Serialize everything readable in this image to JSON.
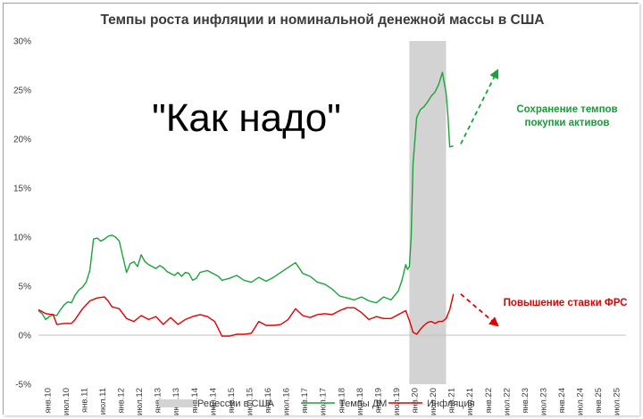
{
  "chart_data": {
    "type": "line",
    "title": "Темпы роста инфляции и номинальной денежной массы в США",
    "overlay_text": "\"Как надо\"",
    "ylim": [
      -5,
      30
    ],
    "yticks": [
      "-5%",
      "0%",
      "5%",
      "10%",
      "15%",
      "20%",
      "25%",
      "30%"
    ],
    "ytick_values": [
      -5,
      0,
      5,
      10,
      15,
      20,
      25,
      30
    ],
    "xlim": [
      2010.0,
      2026.0
    ],
    "xticks": [
      "янв.10",
      "июл.10",
      "янв.11",
      "июл.11",
      "янв.12",
      "июл.12",
      "янв.13",
      "июл.13",
      "янв.14",
      "июл.14",
      "янв.15",
      "июл.15",
      "янв.16",
      "июл.16",
      "янв.17",
      "июл.17",
      "янв.18",
      "июл.18",
      "янв.19",
      "июл.19",
      "янв.20",
      "июл.20",
      "янв.21",
      "июл.21",
      "янв.22",
      "июл.22",
      "янв.23",
      "июл.23",
      "янв.24",
      "июл.24",
      "янв.25",
      "июл.25"
    ],
    "recession": {
      "name": "Рецессии в США",
      "start": 2020.1,
      "end": 2021.1,
      "color": "#d3d3d3"
    },
    "series": [
      {
        "name": "Темпы ДМ",
        "color": "#1aa33a",
        "x": [
          2010.0,
          2010.1,
          2010.2,
          2010.3,
          2010.4,
          2010.5,
          2010.6,
          2010.7,
          2010.8,
          2010.9,
          2011.0,
          2011.1,
          2011.2,
          2011.3,
          2011.4,
          2011.5,
          2011.6,
          2011.7,
          2011.8,
          2011.9,
          2012.0,
          2012.1,
          2012.2,
          2012.3,
          2012.4,
          2012.5,
          2012.6,
          2012.7,
          2012.8,
          2012.9,
          2013.0,
          2013.1,
          2013.2,
          2013.3,
          2013.4,
          2013.5,
          2013.6,
          2013.7,
          2013.8,
          2013.9,
          2014.0,
          2014.1,
          2014.2,
          2014.3,
          2014.4,
          2014.5,
          2014.6,
          2014.7,
          2014.8,
          2014.9,
          2015.0,
          2015.2,
          2015.4,
          2015.6,
          2015.8,
          2016.0,
          2016.2,
          2016.4,
          2016.6,
          2016.8,
          2017.0,
          2017.2,
          2017.4,
          2017.6,
          2017.8,
          2018.0,
          2018.2,
          2018.4,
          2018.6,
          2018.8,
          2019.0,
          2019.2,
          2019.4,
          2019.6,
          2019.8,
          2019.9,
          2020.0,
          2020.05,
          2020.1,
          2020.15,
          2020.2,
          2020.3,
          2020.4,
          2020.5,
          2020.6,
          2020.7,
          2020.8,
          2020.9,
          2021.0,
          2021.1,
          2021.15,
          2021.2,
          2021.3
        ],
        "y": [
          2.5,
          2.2,
          1.6,
          1.9,
          2.1,
          2.0,
          2.6,
          3.1,
          3.4,
          3.3,
          4.1,
          4.6,
          4.9,
          5.4,
          6.6,
          9.8,
          9.9,
          9.6,
          9.8,
          10.1,
          10.2,
          10.0,
          9.6,
          8.0,
          6.4,
          7.3,
          7.5,
          7.0,
          8.2,
          7.5,
          7.2,
          7.0,
          6.8,
          7.1,
          6.9,
          6.5,
          6.3,
          6.1,
          6.4,
          6.0,
          6.4,
          6.3,
          5.6,
          5.8,
          6.4,
          6.5,
          6.6,
          6.4,
          6.2,
          6.0,
          5.6,
          5.8,
          6.1,
          5.6,
          5.4,
          5.9,
          5.5,
          5.9,
          6.4,
          6.9,
          7.4,
          6.3,
          6.0,
          5.4,
          5.2,
          4.7,
          4.0,
          3.8,
          3.6,
          3.9,
          3.5,
          3.3,
          3.9,
          3.6,
          4.5,
          5.6,
          7.2,
          6.7,
          7.0,
          10.0,
          17.5,
          22.2,
          23.0,
          23.3,
          23.8,
          24.4,
          24.8,
          25.6,
          26.8,
          24.7,
          22.5,
          19.2,
          19.3
        ]
      },
      {
        "name": "Инфляция",
        "color": "#e00000",
        "x": [
          2010.0,
          2010.2,
          2010.4,
          2010.5,
          2010.7,
          2010.9,
          2011.0,
          2011.2,
          2011.4,
          2011.6,
          2011.8,
          2011.9,
          2012.0,
          2012.2,
          2012.4,
          2012.6,
          2012.8,
          2013.0,
          2013.2,
          2013.4,
          2013.6,
          2013.8,
          2014.0,
          2014.2,
          2014.4,
          2014.6,
          2014.8,
          2015.0,
          2015.2,
          2015.4,
          2015.6,
          2015.8,
          2016.0,
          2016.2,
          2016.4,
          2016.6,
          2016.8,
          2017.0,
          2017.2,
          2017.4,
          2017.6,
          2017.8,
          2018.0,
          2018.2,
          2018.4,
          2018.6,
          2018.8,
          2019.0,
          2019.2,
          2019.4,
          2019.6,
          2019.8,
          2020.0,
          2020.1,
          2020.2,
          2020.3,
          2020.4,
          2020.5,
          2020.6,
          2020.7,
          2020.8,
          2020.9,
          2021.0,
          2021.1,
          2021.2,
          2021.3
        ],
        "y": [
          2.6,
          2.2,
          2.1,
          1.1,
          1.2,
          1.2,
          1.6,
          2.7,
          3.5,
          3.8,
          3.9,
          3.5,
          2.9,
          2.7,
          1.7,
          1.4,
          2.0,
          1.6,
          1.9,
          1.1,
          1.8,
          1.1,
          1.6,
          1.9,
          2.1,
          1.9,
          1.4,
          -0.1,
          -0.1,
          0.1,
          0.1,
          0.2,
          1.4,
          1.0,
          1.0,
          1.1,
          1.6,
          2.7,
          2.0,
          1.8,
          2.1,
          2.2,
          2.1,
          2.5,
          2.8,
          2.8,
          2.3,
          1.6,
          1.9,
          1.7,
          1.7,
          2.1,
          2.5,
          1.5,
          0.3,
          0.1,
          0.6,
          1.0,
          1.3,
          1.4,
          1.2,
          1.4,
          1.4,
          1.7,
          2.6,
          4.2
        ]
      }
    ],
    "annotations": [
      {
        "text_lines": [
          "Сохранение темпов",
          "покупки активов"
        ],
        "color": "#1aa33a",
        "arrow_from": [
          2021.5,
          19.5
        ],
        "arrow_to": [
          2022.5,
          27.0
        ]
      },
      {
        "text_lines": [
          "Повышение ставки ФРС"
        ],
        "color": "#e00000",
        "arrow_from": [
          2021.5,
          4.2
        ],
        "arrow_to": [
          2022.5,
          1.0
        ]
      }
    ],
    "legend": {
      "placement": "bottom",
      "entries": [
        "Рецессии в США",
        "Темпы ДМ",
        "Инфляция"
      ]
    }
  }
}
